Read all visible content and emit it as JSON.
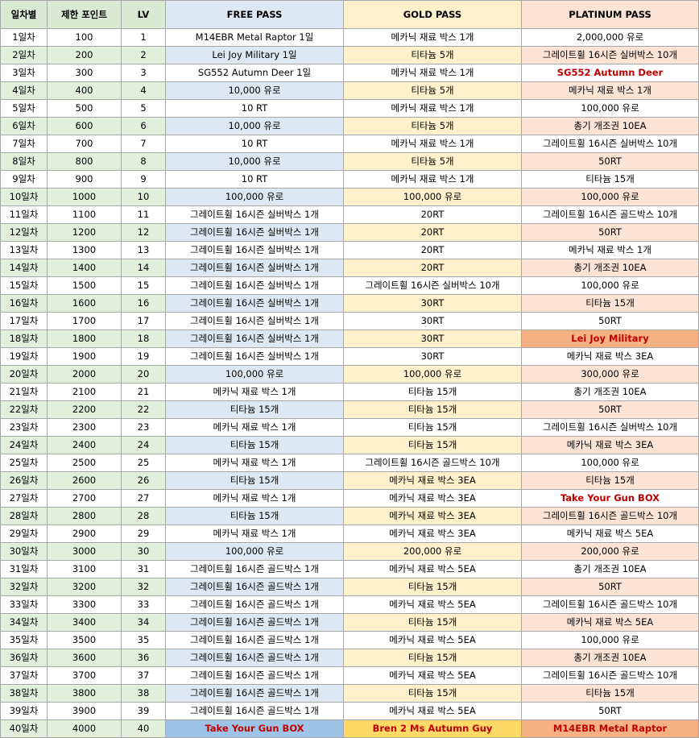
{
  "headers": {
    "day": "일차별",
    "points": "제한 포인트",
    "lv": "LV",
    "free": "FREE PASS",
    "gold": "GOLD PASS",
    "platinum": "PLATINUM PASS"
  },
  "rows": [
    {
      "day": "1일차",
      "points": "100",
      "lv": "1",
      "free": "M14EBR Metal Raptor 1일",
      "gold": "메카닉 재료 박스 1개",
      "platinum": "2,000,000 유로"
    },
    {
      "day": "2일차",
      "points": "200",
      "lv": "2",
      "free": "Lei Joy Military 1일",
      "gold": "티타늄 5개",
      "platinum": "그레이트휠 16시즌 실버박스 10개"
    },
    {
      "day": "3일차",
      "points": "300",
      "lv": "3",
      "free": "SG552 Autumn Deer 1일",
      "gold": "메카닉 재료 박스 1개",
      "platinum": "SG552 Autumn Deer"
    },
    {
      "day": "4일차",
      "points": "400",
      "lv": "4",
      "free": "10,000 유로",
      "gold": "티타늄 5개",
      "platinum": "메카닉 재료 박스 1개"
    },
    {
      "day": "5일차",
      "points": "500",
      "lv": "5",
      "free": "10 RT",
      "gold": "메카닉 재료 박스 1개",
      "platinum": "100,000 유로"
    },
    {
      "day": "6일차",
      "points": "600",
      "lv": "6",
      "free": "10,000 유로",
      "gold": "티타늄 5개",
      "platinum": "총기 개조권 10EA"
    },
    {
      "day": "7일차",
      "points": "700",
      "lv": "7",
      "free": "10 RT",
      "gold": "메카닉 재료 박스 1개",
      "platinum": "그레이트휠 16시즌 실버박스 10개"
    },
    {
      "day": "8일차",
      "points": "800",
      "lv": "8",
      "free": "10,000 유로",
      "gold": "티타늄 5개",
      "platinum": "50RT"
    },
    {
      "day": "9일차",
      "points": "900",
      "lv": "9",
      "free": "10 RT",
      "gold": "메카닉 재료 박스 1개",
      "platinum": "티타늄 15개"
    },
    {
      "day": "10일차",
      "points": "1000",
      "lv": "10",
      "free": "100,000 유로",
      "gold": "100,000 유로",
      "platinum": "100,000 유로"
    },
    {
      "day": "11일차",
      "points": "1100",
      "lv": "11",
      "free": "그레이트휠 16시즌 실버박스 1개",
      "gold": "20RT",
      "platinum": "그레이트휠 16시즌 골드박스 10개"
    },
    {
      "day": "12일차",
      "points": "1200",
      "lv": "12",
      "free": "그레이트휠 16시즌 실버박스 1개",
      "gold": "20RT",
      "platinum": "50RT"
    },
    {
      "day": "13일차",
      "points": "1300",
      "lv": "13",
      "free": "그레이트휠 16시즌 실버박스 1개",
      "gold": "20RT",
      "platinum": "메카닉 재료 박스 1개"
    },
    {
      "day": "14일차",
      "points": "1400",
      "lv": "14",
      "free": "그레이트휠 16시즌 실버박스 1개",
      "gold": "20RT",
      "platinum": "총기 개조권 10EA"
    },
    {
      "day": "15일차",
      "points": "1500",
      "lv": "15",
      "free": "그레이트휠 16시즌 실버박스 1개",
      "gold": "그레이트휠 16시즌 실버박스 10개",
      "platinum": "100,000 유로"
    },
    {
      "day": "16일차",
      "points": "1600",
      "lv": "16",
      "free": "그레이트휠 16시즌 실버박스 1개",
      "gold": "30RT",
      "platinum": "티타늄 15개"
    },
    {
      "day": "17일차",
      "points": "1700",
      "lv": "17",
      "free": "그레이트휠 16시즌 실버박스 1개",
      "gold": "30RT",
      "platinum": "50RT"
    },
    {
      "day": "18일차",
      "points": "1800",
      "lv": "18",
      "free": "그레이트휠 16시즌 실버박스 1개",
      "gold": "30RT",
      "platinum": "Lei Joy Military"
    },
    {
      "day": "19일차",
      "points": "1900",
      "lv": "19",
      "free": "그레이트휠 16시즌 실버박스 1개",
      "gold": "30RT",
      "platinum": "메카닉 재료 박스 3EA"
    },
    {
      "day": "20일차",
      "points": "2000",
      "lv": "20",
      "free": "100,000 유로",
      "gold": "100,000 유로",
      "platinum": "300,000 유로"
    },
    {
      "day": "21일차",
      "points": "2100",
      "lv": "21",
      "free": "메카닉 재료 박스 1개",
      "gold": "티타늄 15개",
      "platinum": "총기 개조권 10EA"
    },
    {
      "day": "22일차",
      "points": "2200",
      "lv": "22",
      "free": "티타늄 15개",
      "gold": "티타늄 15개",
      "platinum": "50RT"
    },
    {
      "day": "23일차",
      "points": "2300",
      "lv": "23",
      "free": "메카닉 재료 박스 1개",
      "gold": "티타늄 15개",
      "platinum": "그레이트휠 16시즌 실버박스 10개"
    },
    {
      "day": "24일차",
      "points": "2400",
      "lv": "24",
      "free": "티타늄 15개",
      "gold": "티타늄 15개",
      "platinum": "메카닉 재료 박스 3EA"
    },
    {
      "day": "25일차",
      "points": "2500",
      "lv": "25",
      "free": "메카닉 재료 박스 1개",
      "gold": "그레이트휠 16시즌 골드박스 10개",
      "platinum": "100,000 유로"
    },
    {
      "day": "26일차",
      "points": "2600",
      "lv": "26",
      "free": "티타늄 15개",
      "gold": "메카닉 재료 박스 3EA",
      "platinum": "티타늄 15개"
    },
    {
      "day": "27일차",
      "points": "2700",
      "lv": "27",
      "free": "메카닉 재료 박스 1개",
      "gold": "메카닉 재료 박스 3EA",
      "platinum": "Take Your Gun BOX"
    },
    {
      "day": "28일차",
      "points": "2800",
      "lv": "28",
      "free": "티타늄 15개",
      "gold": "메카닉 재료 박스 3EA",
      "platinum": "그레이트휠 16시즌 골드박스 10개"
    },
    {
      "day": "29일차",
      "points": "2900",
      "lv": "29",
      "free": "메카닉 재료 박스 1개",
      "gold": "메카닉 재료 박스 3EA",
      "platinum": "메카닉 재료 박스 5EA"
    },
    {
      "day": "30일차",
      "points": "3000",
      "lv": "30",
      "free": "100,000 유로",
      "gold": "200,000 유로",
      "platinum": "200,000 유로"
    },
    {
      "day": "31일차",
      "points": "3100",
      "lv": "31",
      "free": "그레이트휠 16시즌 골드박스 1개",
      "gold": "메카닉 재료 박스 5EA",
      "platinum": "총기 개조권 10EA"
    },
    {
      "day": "32일차",
      "points": "3200",
      "lv": "32",
      "free": "그레이트휠 16시즌 골드박스 1개",
      "gold": "티타늄 15개",
      "platinum": "50RT"
    },
    {
      "day": "33일차",
      "points": "3300",
      "lv": "33",
      "free": "그레이트휠 16시즌 골드박스 1개",
      "gold": "메카닉 재료 박스 5EA",
      "platinum": "그레이트휠 16시즌 골드박스 10개"
    },
    {
      "day": "34일차",
      "points": "3400",
      "lv": "34",
      "free": "그레이트휠 16시즌 골드박스 1개",
      "gold": "티타늄 15개",
      "platinum": "메카닉 재료 박스 5EA"
    },
    {
      "day": "35일차",
      "points": "3500",
      "lv": "35",
      "free": "그레이트휠 16시즌 골드박스 1개",
      "gold": "메카닉 재료 박스 5EA",
      "platinum": "100,000 유로"
    },
    {
      "day": "36일차",
      "points": "3600",
      "lv": "36",
      "free": "그레이트휠 16시즌 골드박스 1개",
      "gold": "티타늄 15개",
      "platinum": "총기 개조권 10EA"
    },
    {
      "day": "37일차",
      "points": "3700",
      "lv": "37",
      "free": "그레이트휠 16시즌 골드박스 1개",
      "gold": "메카닉 재료 박스 5EA",
      "platinum": "그레이트휠 16시즌 골드박스 10개"
    },
    {
      "day": "38일차",
      "points": "3800",
      "lv": "38",
      "free": "그레이트휠 16시즌 골드박스 1개",
      "gold": "티타늄 15개",
      "platinum": "티타늄 15개"
    },
    {
      "day": "39일차",
      "points": "3900",
      "lv": "39",
      "free": "그레이트휠 16시즌 골드박스 1개",
      "gold": "메카닉 재료 박스 5EA",
      "platinum": "50RT"
    },
    {
      "day": "40일차",
      "points": "4000",
      "lv": "40",
      "free": "Take Your Gun BOX",
      "gold": "Bren 2 Ms Autumn Guy",
      "platinum": "M14EBR Metal Raptor"
    }
  ],
  "highlights": {
    "special_text_color": "#c00000",
    "final_free_color": "#9dc3e6",
    "final_gold_color": "#ffd966",
    "final_platinum_color": "#f4b183",
    "bold_red_cells": [
      {
        "row": 3,
        "column": "platinum"
      },
      {
        "row": 18,
        "column": "platinum",
        "filled": true
      },
      {
        "row": 27,
        "column": "platinum"
      },
      {
        "row": 40,
        "column": "free"
      },
      {
        "row": 40,
        "column": "gold"
      },
      {
        "row": 40,
        "column": "platinum"
      }
    ]
  }
}
